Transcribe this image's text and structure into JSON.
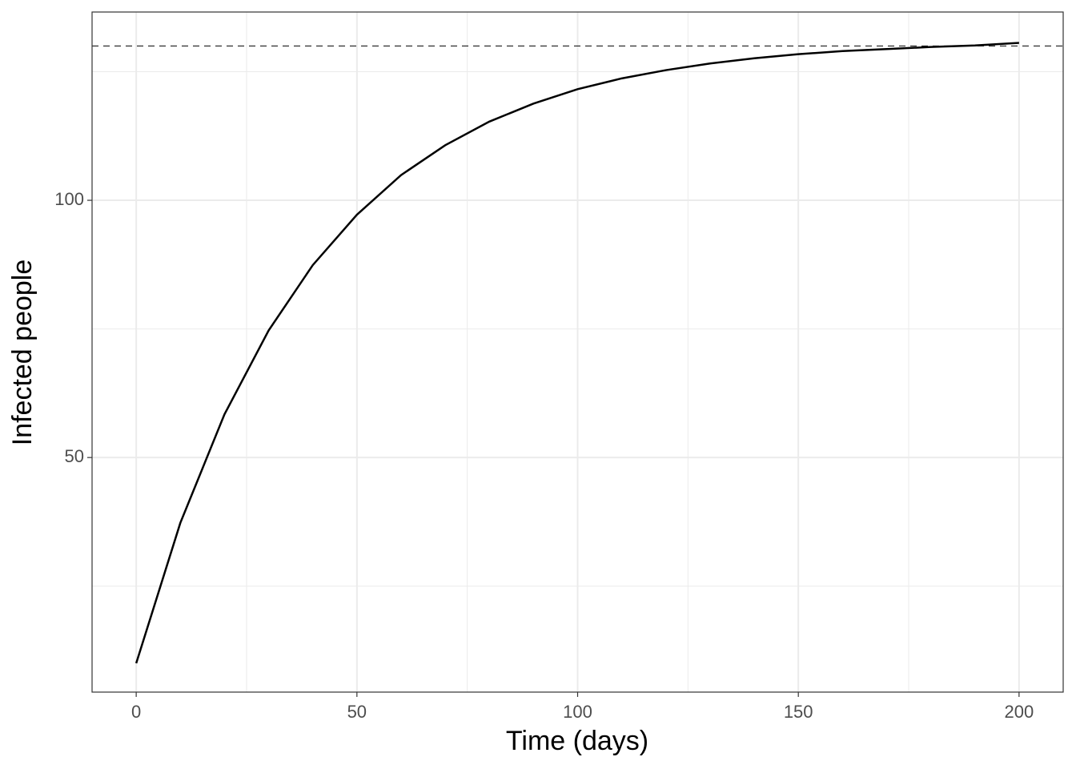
{
  "chart_data": {
    "type": "line",
    "x_label": "Time (days)",
    "y_label": "Infected people",
    "x": [
      0,
      10,
      20,
      30,
      40,
      50,
      60,
      70,
      80,
      90,
      100,
      110,
      120,
      130,
      140,
      150,
      160,
      170,
      180,
      190,
      200
    ],
    "series": [
      {
        "color": "#000000",
        "values": [
          10,
          37.3,
          58.4,
          74.7,
          87.4,
          97.2,
          104.9,
          110.7,
          115.3,
          118.8,
          121.6,
          123.7,
          125.3,
          126.6,
          127.6,
          128.4,
          129.0,
          129.4,
          129.8,
          130.1,
          130.6
        ]
      }
    ],
    "hline": 130,
    "xlim": [
      -10,
      210
    ],
    "xticks": [
      0,
      50,
      100,
      150,
      200
    ],
    "ylim": [
      4.4,
      136.6
    ],
    "yticks": [
      50,
      100
    ],
    "grid": true
  }
}
